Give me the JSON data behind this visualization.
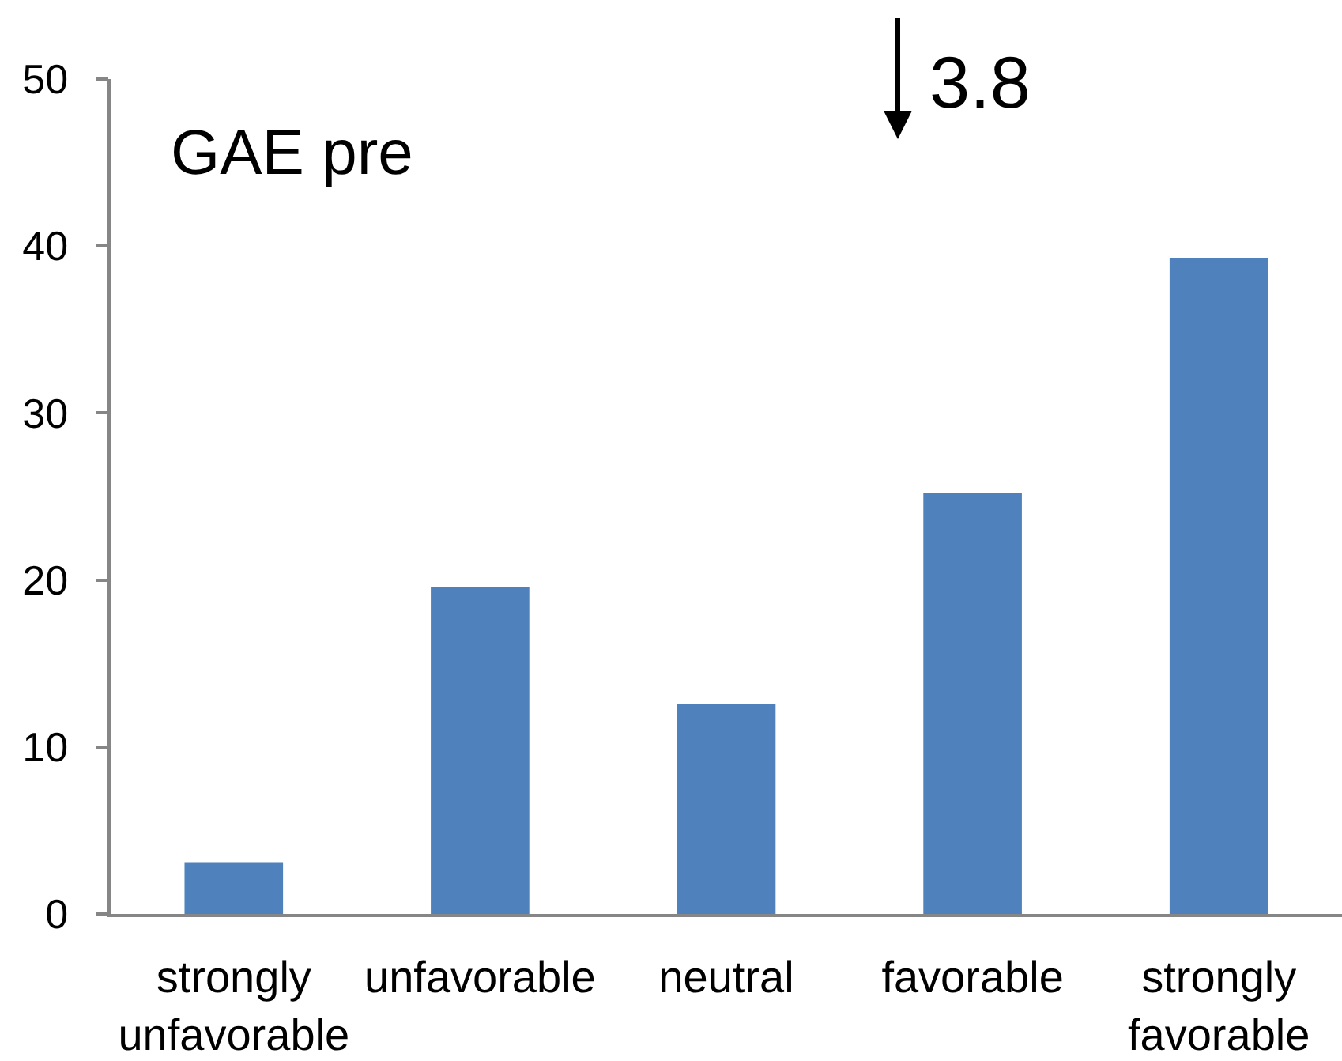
{
  "chart_data": {
    "type": "bar",
    "title": "GAE pre",
    "categories": [
      "strongly unfavorable",
      "unfavorable",
      "neutral",
      "favorable",
      "strongly favorable"
    ],
    "values": [
      3.1,
      19.6,
      12.6,
      25.2,
      39.3
    ],
    "color": "#4f81bd",
    "ylim": [
      0,
      50
    ],
    "yticks": [
      0,
      10,
      20,
      30,
      40,
      50
    ],
    "grid": false,
    "annotations": [
      "3.8"
    ]
  }
}
